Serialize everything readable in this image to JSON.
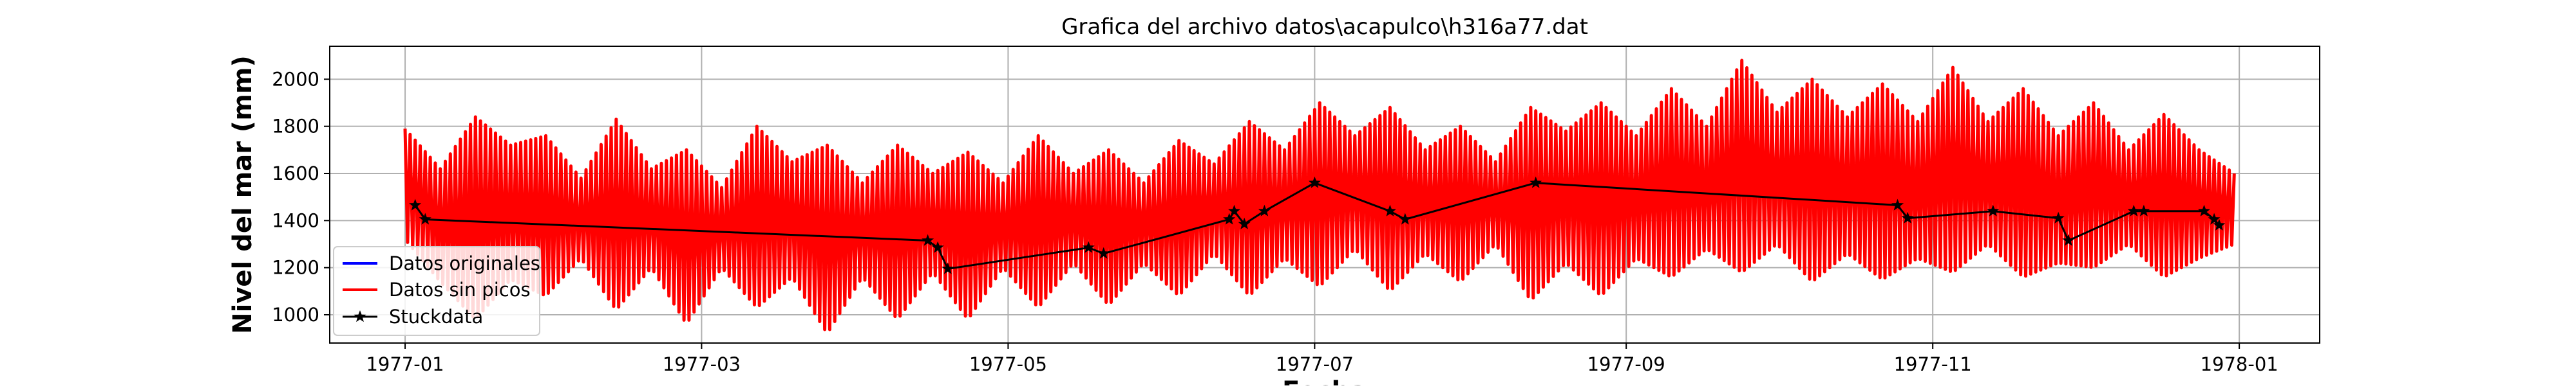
{
  "chart_data": {
    "type": "line",
    "title": "Grafica del archivo datos\\acapulco\\h316a77.dat",
    "xlabel": "Fecha",
    "ylabel": "Nivel del mar (mm)",
    "x_tick_labels": [
      "1977-01",
      "1977-03",
      "1977-05",
      "1977-07",
      "1977-09",
      "1977-11",
      "1978-01"
    ],
    "x_tick_dates": [
      "1977-01-01",
      "1977-03-01",
      "1977-05-01",
      "1977-07-01",
      "1977-09-01",
      "1977-11-01",
      "1978-01-01"
    ],
    "y_ticks": [
      1000,
      1200,
      1400,
      1600,
      1800,
      2000
    ],
    "xlim": [
      "1976-12-17",
      "1978-01-17"
    ],
    "ylim": [
      880,
      2140
    ],
    "grid": true,
    "legend_position": "lower-left",
    "legend": [
      {
        "label": "Datos originales",
        "color": "#0000ff",
        "marker": "none"
      },
      {
        "label": "Datos sin picos",
        "color": "#ff0000",
        "marker": "none"
      },
      {
        "label": "Stuckdata",
        "color": "#000000",
        "marker": "star"
      }
    ],
    "series": [
      {
        "name": "Datos originales",
        "color": "#0000ff",
        "style": "hourly sea-level trace, fully covered by the red trace",
        "x_range": [
          "1977-01-01",
          "1977-12-31"
        ]
      },
      {
        "name": "Datos sin picos",
        "color": "#ff0000",
        "style": "hourly sea-level trace; plotted as daily min/max tidal range",
        "envelope": {
          "dates": [
            "1977-01-01",
            "1977-01-08",
            "1977-01-15",
            "1977-01-22",
            "1977-01-29",
            "1977-02-05",
            "1977-02-12",
            "1977-02-19",
            "1977-02-26",
            "1977-03-05",
            "1977-03-12",
            "1977-03-19",
            "1977-03-26",
            "1977-04-02",
            "1977-04-09",
            "1977-04-16",
            "1977-04-23",
            "1977-04-30",
            "1977-05-07",
            "1977-05-14",
            "1977-05-21",
            "1977-05-28",
            "1977-06-04",
            "1977-06-11",
            "1977-06-18",
            "1977-06-25",
            "1977-07-02",
            "1977-07-09",
            "1977-07-16",
            "1977-07-23",
            "1977-07-30",
            "1977-08-06",
            "1977-08-13",
            "1977-08-20",
            "1977-08-27",
            "1977-09-03",
            "1977-09-10",
            "1977-09-17",
            "1977-09-24",
            "1977-10-01",
            "1977-10-08",
            "1977-10-15",
            "1977-10-22",
            "1977-10-29",
            "1977-11-05",
            "1977-11-12",
            "1977-11-19",
            "1977-11-26",
            "1977-12-03",
            "1977-12-10",
            "1977-12-17",
            "1977-12-24",
            "1977-12-31"
          ],
          "max": [
            1790,
            1620,
            1840,
            1720,
            1760,
            1580,
            1830,
            1620,
            1700,
            1540,
            1800,
            1650,
            1720,
            1560,
            1720,
            1600,
            1690,
            1560,
            1760,
            1600,
            1700,
            1560,
            1740,
            1640,
            1820,
            1700,
            1900,
            1760,
            1880,
            1700,
            1800,
            1650,
            1880,
            1780,
            1900,
            1760,
            1960,
            1800,
            2080,
            1860,
            2000,
            1840,
            1980,
            1820,
            2050,
            1820,
            1960,
            1760,
            1900,
            1700,
            1850,
            1700,
            1600
          ],
          "min": [
            1320,
            1140,
            980,
            1150,
            1080,
            1240,
            1020,
            1200,
            960,
            1200,
            1030,
            1160,
            920,
            1160,
            980,
            1180,
            980,
            1200,
            1030,
            1220,
            1040,
            1220,
            1080,
            1260,
            1080,
            1240,
            1120,
            1280,
            1100,
            1260,
            1140,
            1300,
            1060,
            1220,
            1080,
            1240,
            1160,
            1280,
            1180,
            1300,
            1140,
            1260,
            1150,
            1240,
            1180,
            1300,
            1160,
            1220,
            1200,
            1300,
            1160,
            1240,
            1300
          ]
        }
      },
      {
        "name": "Stuckdata",
        "color": "#000000",
        "marker": "star",
        "points": [
          {
            "x": "1977-01-03",
            "y": 1465
          },
          {
            "x": "1977-01-05",
            "y": 1405
          },
          {
            "x": "1977-04-15",
            "y": 1315
          },
          {
            "x": "1977-04-17",
            "y": 1285
          },
          {
            "x": "1977-04-19",
            "y": 1195
          },
          {
            "x": "1977-05-17",
            "y": 1285
          },
          {
            "x": "1977-05-20",
            "y": 1260
          },
          {
            "x": "1977-06-14",
            "y": 1405
          },
          {
            "x": "1977-06-15",
            "y": 1440
          },
          {
            "x": "1977-06-17",
            "y": 1385
          },
          {
            "x": "1977-06-21",
            "y": 1440
          },
          {
            "x": "1977-07-01",
            "y": 1560
          },
          {
            "x": "1977-07-16",
            "y": 1440
          },
          {
            "x": "1977-07-19",
            "y": 1405
          },
          {
            "x": "1977-08-14",
            "y": 1560
          },
          {
            "x": "1977-10-25",
            "y": 1465
          },
          {
            "x": "1977-10-27",
            "y": 1410
          },
          {
            "x": "1977-11-13",
            "y": 1440
          },
          {
            "x": "1977-11-26",
            "y": 1410
          },
          {
            "x": "1977-11-28",
            "y": 1315
          },
          {
            "x": "1977-12-11",
            "y": 1440
          },
          {
            "x": "1977-12-13",
            "y": 1440
          },
          {
            "x": "1977-12-25",
            "y": 1440
          },
          {
            "x": "1977-12-27",
            "y": 1405
          },
          {
            "x": "1977-12-28",
            "y": 1380
          }
        ]
      }
    ]
  }
}
